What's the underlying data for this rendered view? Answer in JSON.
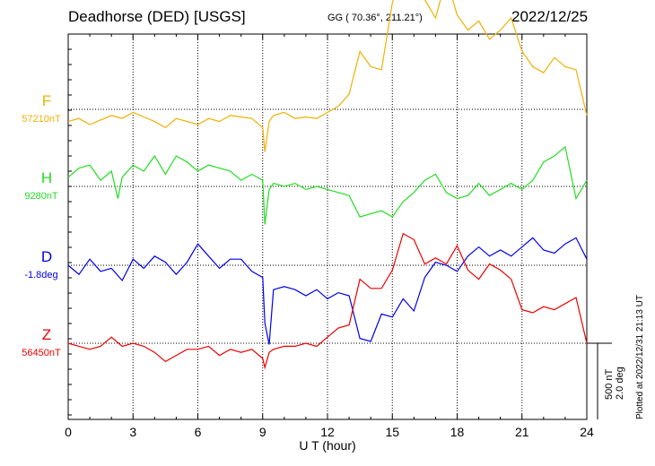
{
  "header": {
    "station": "Deadhorse (DED)",
    "source": "[USGS]",
    "coords": "GG ( 70.36°, 211.21°)",
    "date": "2022/12/25"
  },
  "scale_note": "500 nT",
  "scale_note2": "2.0 deg",
  "plotted_note": "Plotted at 2022/12/31 21:13 UT",
  "chart_data": {
    "type": "line",
    "title": "Deadhorse (DED)  [USGS]",
    "xlabel": "U T (hour)",
    "xlim": [
      0,
      24
    ],
    "xticks": [
      0,
      3,
      6,
      9,
      12,
      15,
      18,
      21,
      24
    ],
    "grid": true,
    "units_per_division": "500 nT / 2.0 deg",
    "series": [
      {
        "name": "F",
        "baseline": "57210nT",
        "color": "#f0b000",
        "x": [
          0,
          0.5,
          1,
          1.5,
          2,
          2.5,
          3,
          3.5,
          4,
          4.5,
          5,
          5.5,
          6,
          6.5,
          7,
          7.5,
          8,
          8.5,
          9,
          9.1,
          9.3,
          9.5,
          10,
          10.5,
          11,
          11.5,
          12,
          12.5,
          13,
          13.5,
          14,
          14.5,
          15,
          15.5,
          16,
          16.5,
          17,
          17.5,
          18,
          18.5,
          19,
          19.5,
          20,
          20.5,
          21,
          21.5,
          22,
          22.5,
          23,
          23.5,
          24
        ],
        "y": [
          -80,
          -60,
          -100,
          -70,
          -40,
          -60,
          -20,
          -50,
          -80,
          -120,
          -60,
          -80,
          -100,
          -60,
          -80,
          -40,
          -50,
          -60,
          -120,
          -280,
          -80,
          -40,
          -20,
          -60,
          -50,
          -60,
          -20,
          20,
          100,
          380,
          280,
          260,
          700,
          900,
          800,
          720,
          600,
          860,
          620,
          520,
          580,
          460,
          520,
          600,
          380,
          280,
          240,
          340,
          280,
          260,
          -40
        ]
      },
      {
        "name": "H",
        "baseline": "9280nT",
        "color": "#22dd22",
        "x": [
          0,
          0.5,
          1,
          1.5,
          2,
          2.3,
          2.5,
          3,
          3.5,
          4,
          4.5,
          5,
          5.5,
          6,
          6.5,
          7,
          7.5,
          8,
          8.5,
          9,
          9.1,
          9.3,
          9.5,
          10,
          10.5,
          11,
          11.5,
          12,
          12.5,
          13,
          13.5,
          14,
          14.5,
          15,
          15.5,
          16,
          16.5,
          17,
          17.5,
          18,
          18.5,
          19,
          19.5,
          20,
          20.5,
          21,
          21.5,
          22,
          22.5,
          23,
          23.5,
          24
        ],
        "y": [
          60,
          120,
          140,
          40,
          100,
          -80,
          60,
          140,
          100,
          200,
          80,
          200,
          160,
          100,
          140,
          120,
          100,
          40,
          80,
          40,
          -250,
          -20,
          20,
          0,
          20,
          -20,
          0,
          -20,
          -40,
          -60,
          -200,
          -180,
          -160,
          -200,
          -100,
          -40,
          40,
          80,
          -40,
          -80,
          -60,
          20,
          -60,
          -20,
          20,
          -20,
          40,
          160,
          200,
          260,
          -80,
          40
        ]
      },
      {
        "name": "D",
        "baseline": "-1.8deg",
        "color": "#0000ee",
        "x": [
          0,
          0.5,
          1,
          1.5,
          2,
          2.5,
          3,
          3.5,
          4,
          4.5,
          5,
          5.5,
          6,
          6.5,
          7,
          7.5,
          8,
          8.5,
          9,
          9.1,
          9.3,
          9.5,
          10,
          10.5,
          11,
          11.5,
          12,
          12.5,
          13,
          13.5,
          14,
          14.5,
          15,
          15.5,
          16,
          16.5,
          17,
          17.5,
          18,
          18.5,
          19,
          19.5,
          20,
          20.5,
          21,
          21.5,
          22,
          22.5,
          23,
          23.5,
          24
        ],
        "y": [
          0,
          -60,
          40,
          -40,
          -20,
          -100,
          40,
          -20,
          60,
          20,
          -60,
          20,
          140,
          60,
          -20,
          40,
          40,
          -40,
          -80,
          -380,
          -520,
          -160,
          -140,
          -160,
          -200,
          -160,
          -220,
          -180,
          -200,
          -480,
          -500,
          -320,
          -340,
          -220,
          -300,
          -80,
          20,
          0,
          -40,
          60,
          120,
          60,
          100,
          60,
          120,
          180,
          100,
          80,
          140,
          180,
          40
        ]
      },
      {
        "name": "Z",
        "baseline": "56450nT",
        "color": "#ee0000",
        "x": [
          0,
          0.5,
          1,
          1.5,
          2,
          2.5,
          3,
          3.5,
          4,
          4.5,
          5,
          5.5,
          6,
          6.5,
          7,
          7.5,
          8,
          8.5,
          9,
          9.1,
          9.3,
          9.5,
          10,
          10.5,
          11,
          11.5,
          12,
          12.5,
          13,
          13.5,
          14,
          14.5,
          15,
          15.5,
          16,
          16.5,
          17,
          17.5,
          18,
          18.5,
          19,
          19.5,
          20,
          20.5,
          21,
          21.5,
          22,
          22.5,
          23,
          23.5,
          24
        ],
        "y": [
          0,
          -20,
          -40,
          -20,
          40,
          -20,
          0,
          -20,
          -60,
          -120,
          -80,
          -40,
          -40,
          -20,
          -80,
          -40,
          -60,
          -40,
          -100,
          -160,
          -60,
          -40,
          -20,
          -20,
          0,
          -20,
          40,
          100,
          120,
          420,
          360,
          360,
          480,
          720,
          680,
          520,
          560,
          520,
          640,
          480,
          420,
          520,
          480,
          420,
          220,
          200,
          240,
          220,
          260,
          300,
          0
        ]
      }
    ]
  }
}
